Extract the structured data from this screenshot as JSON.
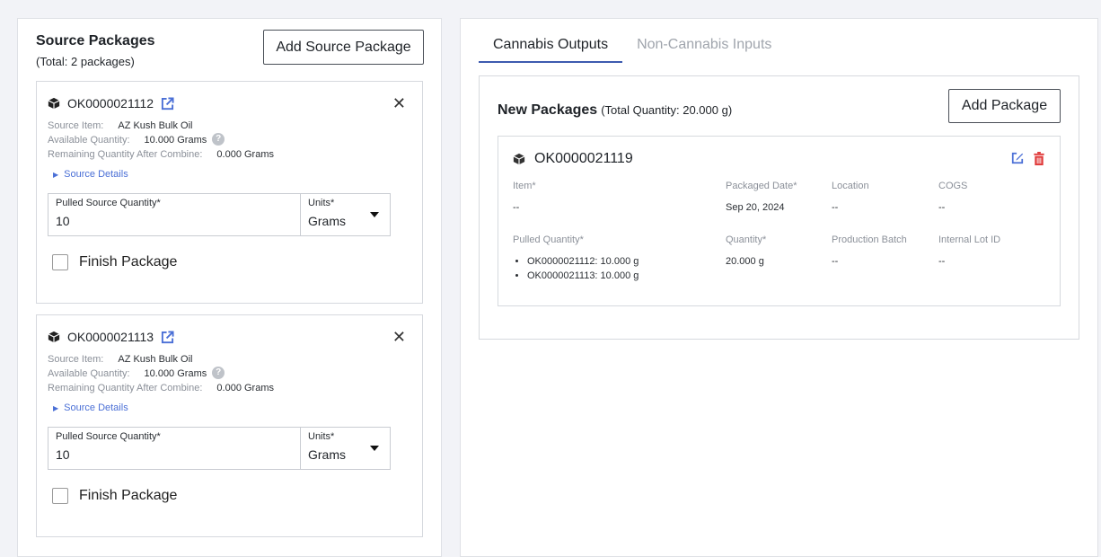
{
  "source": {
    "title": "Source Packages",
    "subtitle": "(Total: 2 packages)",
    "add_label": "Add Source Package",
    "labels": {
      "item": "Source Item:",
      "available": "Available Quantity:",
      "remaining": "Remaining Quantity After Combine:",
      "details": "Source Details",
      "pulled": "Pulled Source Quantity*",
      "units": "Units*",
      "finish": "Finish Package"
    },
    "packages": [
      {
        "id": "OK0000021112",
        "item": "AZ Kush Bulk Oil",
        "available": "10.000 Grams",
        "remaining": "0.000 Grams",
        "pulled": "10",
        "units": "Grams",
        "finished": false
      },
      {
        "id": "OK0000021113",
        "item": "AZ Kush Bulk Oil",
        "available": "10.000 Grams",
        "remaining": "0.000 Grams",
        "pulled": "10",
        "units": "Grams",
        "finished": false
      }
    ]
  },
  "outputs": {
    "tabs": [
      {
        "label": "Cannabis Outputs",
        "active": true
      },
      {
        "label": "Non-Cannabis Inputs",
        "active": false
      }
    ],
    "title": "New Packages",
    "total": "(Total Quantity: 20.000 g)",
    "add_label": "Add Package",
    "package": {
      "id": "OK0000021119",
      "headers": {
        "item": "Item*",
        "date": "Packaged Date*",
        "location": "Location",
        "cogs": "COGS",
        "pulled": "Pulled Quantity*",
        "quantity": "Quantity*",
        "batch": "Production Batch",
        "lot": "Internal Lot ID"
      },
      "values": {
        "item": "--",
        "date": "Sep 20, 2024",
        "location": "--",
        "cogs": "--",
        "pulled": [
          "OK0000021112: 10.000 g",
          "OK0000021113: 10.000 g"
        ],
        "quantity": "20.000 g",
        "batch": "--",
        "lot": "--"
      }
    }
  },
  "colors": {
    "accent": "#3d5bb0",
    "link": "#4a6fd6",
    "delete": "#e03a3a"
  }
}
